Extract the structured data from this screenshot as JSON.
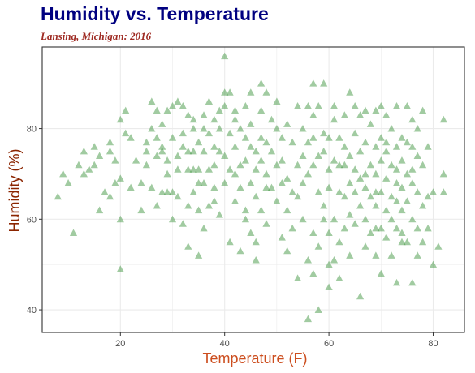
{
  "chart_data": {
    "type": "scatter",
    "title": "Humidity vs. Temperature",
    "subtitle": "Lansing, Michigan: 2016",
    "xlabel": "Temperature (F)",
    "ylabel": "Humidity (%)",
    "xlim": [
      5,
      86
    ],
    "ylim": [
      35,
      98
    ],
    "xticks": [
      20,
      40,
      60,
      80
    ],
    "yticks": [
      40,
      60,
      80
    ],
    "grid": true,
    "legend": "none",
    "marker": "triangle",
    "colors": {
      "points": "#2e8b2e",
      "title": "#000080",
      "subtitle": "#9e2a22",
      "axis_title": "#cc4e1f",
      "ylabel": "#8b2500",
      "grid": "#ebebeb",
      "panel_border": "#333333",
      "tick_text": "#4d4d4d"
    },
    "points": [
      [
        8,
        65
      ],
      [
        9,
        70
      ],
      [
        10,
        68
      ],
      [
        11,
        57
      ],
      [
        12,
        72
      ],
      [
        13,
        75
      ],
      [
        13,
        70
      ],
      [
        14,
        71
      ],
      [
        15,
        72
      ],
      [
        15,
        76
      ],
      [
        16,
        62
      ],
      [
        16,
        74
      ],
      [
        17,
        66
      ],
      [
        18,
        75
      ],
      [
        18,
        77
      ],
      [
        18,
        65
      ],
      [
        19,
        68
      ],
      [
        19,
        73
      ],
      [
        20,
        82
      ],
      [
        20,
        69
      ],
      [
        20,
        60
      ],
      [
        20,
        49
      ],
      [
        21,
        84
      ],
      [
        21,
        79
      ],
      [
        22,
        78
      ],
      [
        22,
        67
      ],
      [
        23,
        73
      ],
      [
        24,
        62
      ],
      [
        24,
        68
      ],
      [
        25,
        77
      ],
      [
        25,
        75
      ],
      [
        26,
        86
      ],
      [
        26,
        80
      ],
      [
        26,
        67
      ],
      [
        27,
        84
      ],
      [
        27,
        74
      ],
      [
        27,
        63
      ],
      [
        28,
        75
      ],
      [
        28,
        81
      ],
      [
        28,
        76
      ],
      [
        28,
        66
      ],
      [
        29,
        84
      ],
      [
        29,
        73
      ],
      [
        29,
        66
      ],
      [
        29,
        70
      ],
      [
        30,
        78
      ],
      [
        30,
        85
      ],
      [
        30,
        60
      ],
      [
        31,
        86
      ],
      [
        31,
        71
      ],
      [
        31,
        65
      ],
      [
        32,
        59
      ],
      [
        32,
        85
      ],
      [
        32,
        76
      ],
      [
        33,
        83
      ],
      [
        33,
        75
      ],
      [
        33,
        63
      ],
      [
        33,
        54
      ],
      [
        34,
        82
      ],
      [
        34,
        75
      ],
      [
        34,
        80
      ],
      [
        34,
        71
      ],
      [
        34,
        66
      ],
      [
        35,
        77
      ],
      [
        35,
        71
      ],
      [
        35,
        62
      ],
      [
        35,
        52
      ],
      [
        36,
        83
      ],
      [
        36,
        75
      ],
      [
        36,
        80
      ],
      [
        36,
        68
      ],
      [
        36,
        58
      ],
      [
        37,
        86
      ],
      [
        37,
        79
      ],
      [
        37,
        71
      ],
      [
        37,
        63
      ],
      [
        38,
        76
      ],
      [
        38,
        82
      ],
      [
        38,
        72
      ],
      [
        38,
        64
      ],
      [
        39,
        84
      ],
      [
        39,
        75
      ],
      [
        39,
        80
      ],
      [
        39,
        61
      ],
      [
        40,
        96
      ],
      [
        40,
        88
      ],
      [
        40,
        74
      ],
      [
        40,
        85
      ],
      [
        40,
        68
      ],
      [
        41,
        88
      ],
      [
        41,
        79
      ],
      [
        41,
        71
      ],
      [
        41,
        55
      ],
      [
        42,
        76
      ],
      [
        42,
        84
      ],
      [
        42,
        70
      ],
      [
        42,
        64
      ],
      [
        43,
        72
      ],
      [
        43,
        80
      ],
      [
        43,
        67
      ],
      [
        43,
        53
      ],
      [
        44,
        85
      ],
      [
        44,
        78
      ],
      [
        44,
        73
      ],
      [
        44,
        62
      ],
      [
        45,
        88
      ],
      [
        45,
        76
      ],
      [
        45,
        81
      ],
      [
        45,
        68
      ],
      [
        45,
        57
      ],
      [
        46,
        75
      ],
      [
        46,
        71
      ],
      [
        46,
        65
      ],
      [
        46,
        55
      ],
      [
        46,
        51
      ],
      [
        47,
        90
      ],
      [
        47,
        78
      ],
      [
        47,
        84
      ],
      [
        47,
        73
      ],
      [
        47,
        62
      ],
      [
        48,
        88
      ],
      [
        48,
        77
      ],
      [
        48,
        70
      ],
      [
        48,
        59
      ],
      [
        49,
        82
      ],
      [
        49,
        75
      ],
      [
        49,
        67
      ],
      [
        50,
        86
      ],
      [
        50,
        80
      ],
      [
        50,
        72
      ],
      [
        50,
        64
      ],
      [
        51,
        78
      ],
      [
        51,
        73
      ],
      [
        51,
        68
      ],
      [
        51,
        56
      ],
      [
        52,
        81
      ],
      [
        52,
        69
      ],
      [
        52,
        62
      ],
      [
        52,
        53
      ],
      [
        53,
        77
      ],
      [
        53,
        66
      ],
      [
        54,
        85
      ],
      [
        54,
        72
      ],
      [
        54,
        65
      ],
      [
        54,
        47
      ],
      [
        55,
        80
      ],
      [
        55,
        74
      ],
      [
        55,
        60
      ],
      [
        56,
        85
      ],
      [
        56,
        77
      ],
      [
        56,
        70
      ],
      [
        56,
        51
      ],
      [
        57,
        90
      ],
      [
        57,
        78
      ],
      [
        57,
        83
      ],
      [
        57,
        72
      ],
      [
        57,
        57
      ],
      [
        58,
        85
      ],
      [
        58,
        74
      ],
      [
        58,
        66
      ],
      [
        58,
        54
      ],
      [
        58,
        40
      ],
      [
        59,
        90
      ],
      [
        59,
        79
      ],
      [
        59,
        75
      ],
      [
        59,
        63
      ],
      [
        60,
        78
      ],
      [
        60,
        71
      ],
      [
        60,
        67
      ],
      [
        60,
        57
      ],
      [
        60,
        45
      ],
      [
        61,
        85
      ],
      [
        61,
        82
      ],
      [
        61,
        73
      ],
      [
        61,
        60
      ],
      [
        61,
        51
      ],
      [
        62,
        78
      ],
      [
        62,
        72
      ],
      [
        62,
        66
      ],
      [
        62,
        55
      ],
      [
        63,
        76
      ],
      [
        63,
        72
      ],
      [
        63,
        65
      ],
      [
        63,
        58
      ],
      [
        64,
        88
      ],
      [
        64,
        74
      ],
      [
        64,
        68
      ],
      [
        64,
        61
      ],
      [
        64,
        52
      ],
      [
        65,
        85
      ],
      [
        65,
        79
      ],
      [
        65,
        66
      ],
      [
        65,
        59
      ],
      [
        66,
        83
      ],
      [
        66,
        75
      ],
      [
        66,
        69
      ],
      [
        66,
        63
      ],
      [
        66,
        43
      ],
      [
        67,
        84
      ],
      [
        67,
        77
      ],
      [
        67,
        70
      ],
      [
        67,
        60
      ],
      [
        67,
        54
      ],
      [
        68,
        81
      ],
      [
        68,
        72
      ],
      [
        68,
        65
      ],
      [
        68,
        57
      ],
      [
        69,
        84
      ],
      [
        69,
        76
      ],
      [
        69,
        70
      ],
      [
        69,
        63
      ],
      [
        69,
        58
      ],
      [
        69,
        52
      ],
      [
        70,
        85
      ],
      [
        70,
        78
      ],
      [
        70,
        73
      ],
      [
        70,
        66
      ],
      [
        70,
        58
      ],
      [
        70,
        48
      ],
      [
        71,
        83
      ],
      [
        71,
        75
      ],
      [
        71,
        69
      ],
      [
        71,
        62
      ],
      [
        71,
        56
      ],
      [
        72,
        80
      ],
      [
        72,
        72
      ],
      [
        72,
        65
      ],
      [
        72,
        60
      ],
      [
        72,
        52
      ],
      [
        73,
        85
      ],
      [
        73,
        76
      ],
      [
        73,
        71
      ],
      [
        73,
        64
      ],
      [
        73,
        58
      ],
      [
        73,
        46
      ],
      [
        74,
        78
      ],
      [
        74,
        73
      ],
      [
        74,
        67
      ],
      [
        74,
        62
      ],
      [
        74,
        57
      ],
      [
        75,
        85
      ],
      [
        75,
        77
      ],
      [
        75,
        70
      ],
      [
        75,
        64
      ],
      [
        75,
        55
      ],
      [
        76,
        82
      ],
      [
        76,
        76
      ],
      [
        76,
        68
      ],
      [
        76,
        60
      ],
      [
        76,
        46
      ],
      [
        77,
        80
      ],
      [
        77,
        74
      ],
      [
        77,
        66
      ],
      [
        77,
        58
      ],
      [
        77,
        52
      ],
      [
        78,
        84
      ],
      [
        78,
        72
      ],
      [
        78,
        63
      ],
      [
        78,
        55
      ],
      [
        79,
        76
      ],
      [
        79,
        65
      ],
      [
        79,
        58
      ],
      [
        80,
        66
      ],
      [
        80,
        50
      ],
      [
        81,
        54
      ],
      [
        82,
        70
      ],
      [
        82,
        66
      ],
      [
        82,
        82
      ],
      [
        32,
        79
      ],
      [
        33,
        71
      ],
      [
        35,
        68
      ],
      [
        38,
        67
      ],
      [
        42,
        82
      ],
      [
        44,
        60
      ],
      [
        48,
        67
      ],
      [
        53,
        58
      ],
      [
        55,
        68
      ],
      [
        59,
        60
      ],
      [
        63,
        83
      ],
      [
        65,
        71
      ],
      [
        67,
        67
      ],
      [
        69,
        66
      ],
      [
        71,
        77
      ],
      [
        73,
        68
      ],
      [
        74,
        55
      ],
      [
        76,
        71
      ],
      [
        25,
        72
      ],
      [
        27,
        78
      ],
      [
        30,
        66
      ],
      [
        31,
        74
      ],
      [
        57,
        48
      ],
      [
        60,
        50
      ],
      [
        62,
        47
      ],
      [
        56,
        38
      ]
    ]
  }
}
